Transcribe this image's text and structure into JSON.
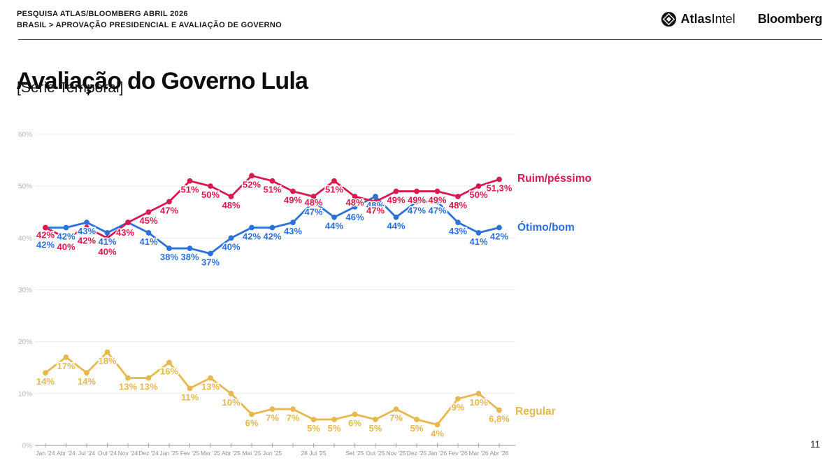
{
  "header": {
    "line1": "PESQUISA ATLAS/BLOOMBERG ABRIL 2026",
    "line2": "BRASIL > APROVAÇÃO PRESIDENCIAL E AVALIAÇÃO DE GOVERNO",
    "logo_atlas_bold": "Atlas",
    "logo_atlas_light": "Intel",
    "logo_bloomberg": "Bloomberg"
  },
  "title": "Avaliação do Governo Lula",
  "subtitle": "[Série Temporal]",
  "page_number": "11",
  "chart_data": {
    "type": "line",
    "title": "Avaliação do Governo Lula [Série Temporal]",
    "xlabel": "",
    "ylabel": "",
    "ylim": [
      0,
      60
    ],
    "grid": true,
    "legend_position": "right",
    "y_ticks": [
      "0%",
      "10%",
      "20%",
      "30%",
      "40%",
      "50%",
      "60%"
    ],
    "x_labels": [
      "Jan '24",
      "Abr '24",
      "Jul '24",
      "Out '24",
      "Nov '24",
      "Dez '24",
      "Jan '25",
      "Fev '25",
      "Mar '25",
      "Abr '25",
      "Mai '25",
      "Jun '25",
      "",
      "28 Jul '25",
      "",
      "Set '25",
      "Out '25",
      "Nov '25",
      "Dez '25",
      "Jan '26",
      "Fev '26",
      "Mar '26",
      "Abr '26"
    ],
    "series": [
      {
        "name": "Ruim/péssimo",
        "color": "#d91a4e",
        "values": [
          42,
          40,
          42,
          40,
          43,
          45,
          47,
          51,
          50,
          48,
          52,
          51,
          49,
          48,
          51,
          48,
          47,
          49,
          49,
          49,
          48,
          50,
          51.3
        ],
        "labels": [
          "42%",
          "40%",
          "42%",
          "40%",
          "43%",
          "45%",
          "47%",
          "51%",
          "50%",
          "48%",
          "52%",
          "51%",
          "49%",
          "48%",
          "51%",
          "48%",
          "47%",
          "49%",
          "49%",
          "49%",
          "48%",
          "50%",
          "51,3%"
        ]
      },
      {
        "name": "Ótimo/bom",
        "color": "#2b71d9",
        "values": [
          42,
          42,
          43,
          41,
          43,
          41,
          38,
          38,
          37,
          40,
          42,
          42,
          43,
          47,
          44,
          46,
          48,
          44,
          47,
          47,
          43,
          41,
          42
        ],
        "labels": [
          "42%",
          "42%",
          "43%",
          "41%",
          "",
          "41%",
          "38%",
          "38%",
          "37%",
          "40%",
          "42%",
          "42%",
          "43%",
          "47%",
          "44%",
          "46%",
          "48%",
          "44%",
          "47%",
          "47%",
          "43%",
          "41%",
          "42%"
        ]
      },
      {
        "name": "Regular",
        "color": "#e7b84e",
        "values": [
          14,
          17,
          14,
          18,
          13,
          13,
          16,
          11,
          13,
          10,
          6,
          7,
          7,
          5,
          5,
          6,
          5,
          7,
          5,
          4,
          9,
          10,
          6.8
        ],
        "labels": [
          "14%",
          "17%",
          "14%",
          "18%",
          "13%",
          "13%",
          "16%",
          "11%",
          "13%",
          "10%",
          "6%",
          "7%",
          "7%",
          "5%",
          "5%",
          "6%",
          "5%",
          "7%",
          "5%",
          "4%",
          "9%",
          "10%",
          "6,8%"
        ]
      }
    ]
  }
}
